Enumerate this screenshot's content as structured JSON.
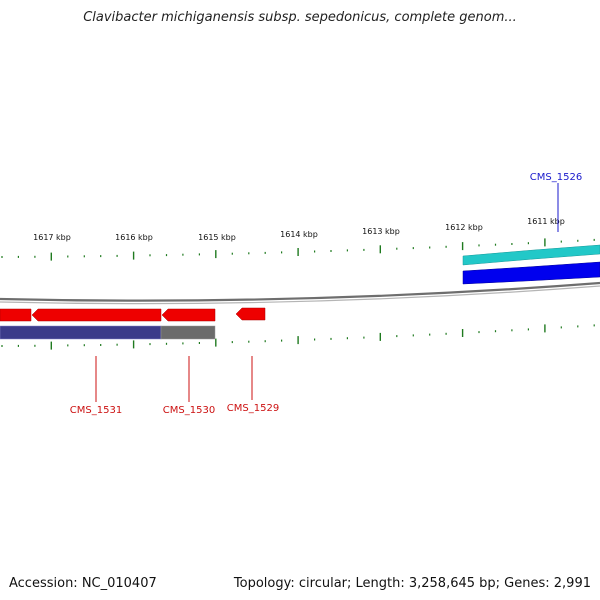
{
  "title": "Clavibacter michiganensis subsp. sepedonicus, complete genom...",
  "footer": {
    "accession": "Accession: NC_010407",
    "summary": "Topology: circular; Length: 3,258,645 bp; Genes: 2,991"
  },
  "scale_labels": [
    "1617 kbp",
    "1616 kbp",
    "1615 kbp",
    "1614 kbp",
    "1613 kbp",
    "1612 kbp",
    "1611 kbp"
  ],
  "genes": [
    {
      "name": "CMS_1526",
      "strand": "forward",
      "color": "#1a1acc"
    },
    {
      "name": "CMS_1531",
      "strand": "reverse",
      "color": "#cc1111"
    },
    {
      "name": "CMS_1530",
      "strand": "reverse",
      "color": "#cc1111"
    },
    {
      "name": "CMS_1529",
      "strand": "reverse",
      "color": "#cc1111"
    }
  ],
  "colors": {
    "backbone": "#8a8a8a",
    "forward_cds": "#0000ee",
    "forward_feature": "#22c8c8",
    "reverse_cds": "#ee0000",
    "reverse_feature_a": "#3b3b8a",
    "reverse_feature_b": "#6b6b6b",
    "ticks": "#1f7a1f"
  }
}
